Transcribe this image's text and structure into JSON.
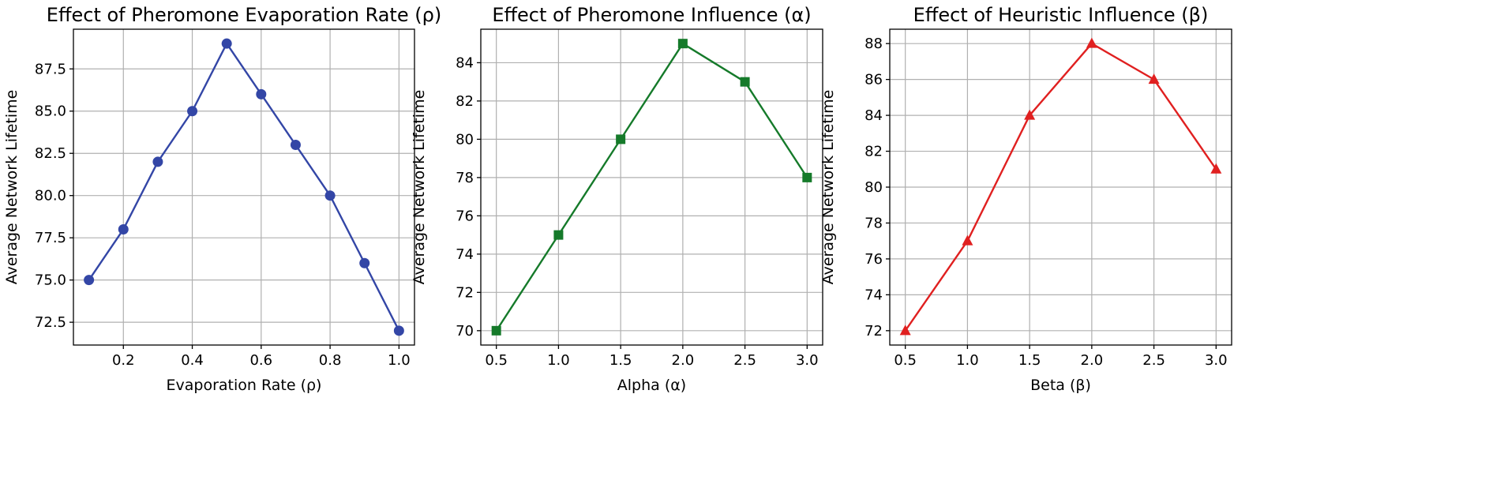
{
  "chart_data": [
    {
      "type": "line",
      "title": "Effect of Pheromone Evaporation Rate (ρ)",
      "xlabel": "Evaporation Rate (ρ)",
      "ylabel": "Average Network Lifetime",
      "x": [
        0.1,
        0.2,
        0.3,
        0.4,
        0.5,
        0.6,
        0.7,
        0.8,
        0.9,
        1.0
      ],
      "values": [
        75,
        78,
        82,
        85,
        89,
        86,
        83,
        80,
        76,
        72
      ],
      "xlim": [
        0.055,
        1.045
      ],
      "ylim": [
        71.15,
        89.85
      ],
      "xticks": [
        0.2,
        0.4,
        0.6,
        0.8,
        1.0
      ],
      "xtick_labels": [
        "0.2",
        "0.4",
        "0.6",
        "0.8",
        "1.0"
      ],
      "yticks": [
        72.5,
        75.0,
        77.5,
        80.0,
        82.5,
        85.0,
        87.5
      ],
      "ytick_labels": [
        "72.5",
        "75.0",
        "77.5",
        "80.0",
        "82.5",
        "85.0",
        "87.5"
      ],
      "color": "#3346a6",
      "marker": "circle",
      "grid": true
    },
    {
      "type": "line",
      "title": "Effect of Pheromone Influence (α)",
      "xlabel": "Alpha (α)",
      "ylabel": "Average Network Lifetime",
      "x": [
        0.5,
        1.0,
        1.5,
        2.0,
        2.5,
        3.0
      ],
      "values": [
        70,
        75,
        80,
        85,
        83,
        78
      ],
      "xlim": [
        0.375,
        3.125
      ],
      "ylim": [
        69.25,
        85.75
      ],
      "xticks": [
        0.5,
        1.0,
        1.5,
        2.0,
        2.5,
        3.0
      ],
      "xtick_labels": [
        "0.5",
        "1.0",
        "1.5",
        "2.0",
        "2.5",
        "3.0"
      ],
      "yticks": [
        70,
        72,
        74,
        76,
        78,
        80,
        82,
        84
      ],
      "ytick_labels": [
        "70",
        "72",
        "74",
        "76",
        "78",
        "80",
        "82",
        "84"
      ],
      "color": "#157a2a",
      "marker": "square",
      "grid": true
    },
    {
      "type": "line",
      "title": "Effect of Heuristic Influence (β)",
      "xlabel": "Beta (β)",
      "ylabel": "Average Network Lifetime",
      "x": [
        0.5,
        1.0,
        1.5,
        2.0,
        2.5,
        3.0
      ],
      "values": [
        72,
        77,
        84,
        88,
        86,
        81
      ],
      "xlim": [
        0.375,
        3.125
      ],
      "ylim": [
        71.2,
        88.8
      ],
      "xticks": [
        0.5,
        1.0,
        1.5,
        2.0,
        2.5,
        3.0
      ],
      "xtick_labels": [
        "0.5",
        "1.0",
        "1.5",
        "2.0",
        "2.5",
        "3.0"
      ],
      "yticks": [
        72,
        74,
        76,
        78,
        80,
        82,
        84,
        86,
        88
      ],
      "ytick_labels": [
        "72",
        "74",
        "76",
        "78",
        "80",
        "82",
        "84",
        "86",
        "88"
      ],
      "color": "#e02020",
      "marker": "triangle",
      "grid": true
    }
  ]
}
